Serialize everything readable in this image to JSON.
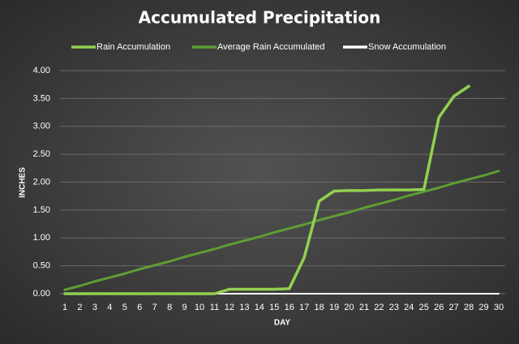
{
  "chart_data": {
    "type": "line",
    "title": "Accumulated Precipitation",
    "x_label": "DAY",
    "y_label": "INCHES",
    "x": [
      1,
      2,
      3,
      4,
      5,
      6,
      7,
      8,
      9,
      10,
      11,
      12,
      13,
      14,
      15,
      16,
      17,
      18,
      19,
      20,
      21,
      22,
      23,
      24,
      25,
      26,
      27,
      28,
      29,
      30
    ],
    "xlim": [
      1,
      30
    ],
    "ylim": [
      0,
      4
    ],
    "yticks": [
      {
        "value": 0,
        "label": "0.00"
      },
      {
        "value": 0.5,
        "label": "0.50"
      },
      {
        "value": 1,
        "label": "1.00"
      },
      {
        "value": 1.5,
        "label": "1.50"
      },
      {
        "value": 2,
        "label": "2.00"
      },
      {
        "value": 2.5,
        "label": "2.50"
      },
      {
        "value": 3,
        "label": "3.00"
      },
      {
        "value": 3.5,
        "label": "3.50"
      },
      {
        "value": 4,
        "label": "4.00"
      }
    ],
    "grid": true,
    "legend": "top",
    "series": [
      {
        "name": "Rain Accumulation",
        "color": "#92d050",
        "width": 3.5,
        "values": [
          0,
          0,
          0,
          0,
          0,
          0,
          0,
          0,
          0,
          0,
          0,
          0.08,
          0.08,
          0.08,
          0.08,
          0.09,
          0.65,
          1.66,
          1.84,
          1.85,
          1.85,
          1.86,
          1.86,
          1.86,
          1.87,
          3.16,
          3.54,
          3.72,
          null,
          null
        ]
      },
      {
        "name": "Average Rain Accumulated",
        "color": "#5e9e34",
        "width": 3,
        "values": [
          0.07,
          0.14,
          0.22,
          0.29,
          0.36,
          0.44,
          0.51,
          0.58,
          0.66,
          0.73,
          0.8,
          0.88,
          0.95,
          1.02,
          1.1,
          1.17,
          1.24,
          1.32,
          1.39,
          1.46,
          1.54,
          1.61,
          1.68,
          1.76,
          1.83,
          1.9,
          1.98,
          2.05,
          2.12,
          2.2
        ]
      },
      {
        "name": "Snow Accumulation",
        "color": "#ffffff",
        "width": 2,
        "values": [
          0,
          0,
          0,
          0,
          0,
          0,
          0,
          0,
          0,
          0,
          0,
          0,
          0,
          0,
          0,
          0,
          0,
          0,
          0,
          0,
          0,
          0,
          0,
          0,
          0,
          0,
          0,
          0,
          0,
          0
        ]
      }
    ]
  }
}
